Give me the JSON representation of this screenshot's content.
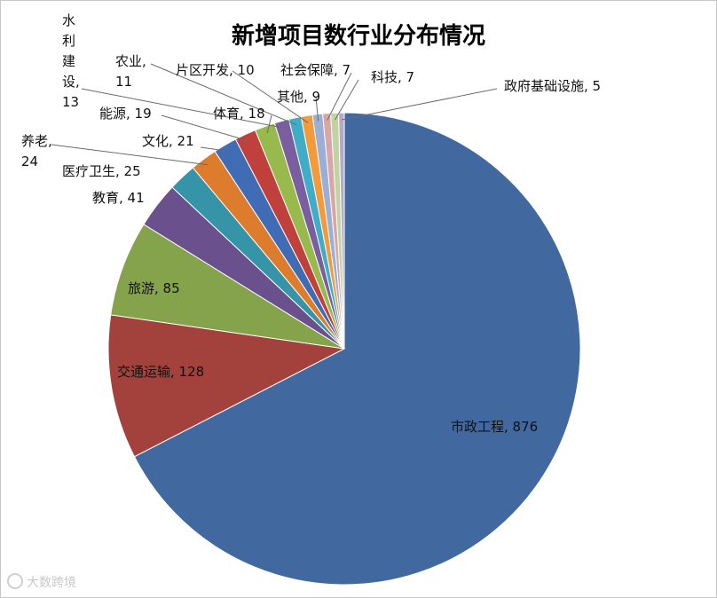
{
  "chart_data": {
    "type": "pie",
    "title": "新增项目数行业分布情况",
    "slices": [
      {
        "label": "市政工程",
        "value": 876,
        "color": "#4169a0",
        "text": "市政工程, 876"
      },
      {
        "label": "交通运输",
        "value": 128,
        "color": "#a3413c",
        "text": "交通运输, 128"
      },
      {
        "label": "旅游",
        "value": 85,
        "color": "#85a34a",
        "text": "旅游, 85"
      },
      {
        "label": "教育",
        "value": 41,
        "color": "#6a508d",
        "text": "教育, 41"
      },
      {
        "label": "医疗卫生",
        "value": 25,
        "color": "#3594a8",
        "text": "医疗卫生, 25"
      },
      {
        "label": "养老",
        "value": 24,
        "color": "#dc7c2c",
        "text": "养老,\n24"
      },
      {
        "label": "文化",
        "value": 21,
        "color": "#3f6cb5",
        "text": "文化, 21"
      },
      {
        "label": "能源",
        "value": 19,
        "color": "#c0413c",
        "text": "能源, 19"
      },
      {
        "label": "体育",
        "value": 18,
        "color": "#98ba4c",
        "text": "体育, 18"
      },
      {
        "label": "水利建设",
        "value": 13,
        "color": "#7b5e9f",
        "text": "水\n利\n建\n设,\n13"
      },
      {
        "label": "农业",
        "value": 11,
        "color": "#3fadc7",
        "text": "农业,\n11"
      },
      {
        "label": "片区开发",
        "value": 10,
        "color": "#f59a3a",
        "text": "片区开发, 10"
      },
      {
        "label": "其他",
        "value": 9,
        "color": "#9aaed6",
        "text": "其他, 9"
      },
      {
        "label": "社会保障",
        "value": 7,
        "color": "#d8a6a4",
        "text": "社会保障, 7"
      },
      {
        "label": "科技",
        "value": 7,
        "color": "#c1d3a2",
        "text": "科技, 7"
      },
      {
        "label": "政府基础设施",
        "value": 5,
        "color": "#b5aac9",
        "text": "政府基础设施, 5"
      }
    ]
  },
  "watermark": {
    "text": "大数跨境"
  }
}
